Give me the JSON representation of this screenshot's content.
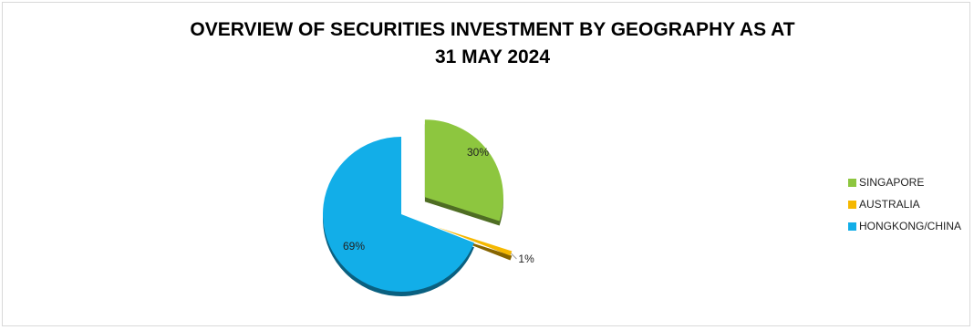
{
  "chart_data": {
    "type": "pie",
    "title_lines": [
      "OVERVIEW OF SECURITIES INVESTMENT BY GEOGRAPHY AS AT",
      "31 MAY 2024"
    ],
    "legend_position": "right",
    "exploded": true,
    "style": "3d",
    "slices": [
      {
        "label": "SINGAPORE",
        "value": 30,
        "display": "30%",
        "color": "#8dc63f"
      },
      {
        "label": "AUSTRALIA",
        "value": 1,
        "display": "1%",
        "color": "#f5b800"
      },
      {
        "label": "HONGKONG/CHINA",
        "value": 69,
        "display": "69%",
        "color": "#12aee8"
      }
    ]
  }
}
